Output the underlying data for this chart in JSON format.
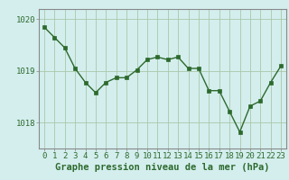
{
  "x": [
    0,
    1,
    2,
    3,
    4,
    5,
    6,
    7,
    8,
    9,
    10,
    11,
    12,
    13,
    14,
    15,
    16,
    17,
    18,
    19,
    20,
    21,
    22,
    23
  ],
  "y": [
    1019.85,
    1019.65,
    1019.45,
    1019.05,
    1018.78,
    1018.58,
    1018.78,
    1018.87,
    1018.87,
    1019.02,
    1019.22,
    1019.27,
    1019.22,
    1019.27,
    1019.05,
    1019.05,
    1018.62,
    1018.62,
    1018.22,
    1017.82,
    1018.32,
    1018.42,
    1018.78,
    1019.1
  ],
  "line_color": "#2d6a2d",
  "marker_color": "#2d6a2d",
  "bg_color": "#d4eeee",
  "plot_bg_color": "#d4eeee",
  "grid_color": "#a8c8a8",
  "axis_color": "#888888",
  "xlabel": "Graphe pression niveau de la mer (hPa)",
  "xlabel_color": "#2d6a2d",
  "tick_label_color": "#2d6a2d",
  "ylim": [
    1017.5,
    1020.2
  ],
  "yticks": [
    1018,
    1019,
    1020
  ],
  "xticks": [
    0,
    1,
    2,
    3,
    4,
    5,
    6,
    7,
    8,
    9,
    10,
    11,
    12,
    13,
    14,
    15,
    16,
    17,
    18,
    19,
    20,
    21,
    22,
    23
  ],
  "marker_size": 2.5,
  "line_width": 1.0,
  "font_size_ticks": 6.5,
  "font_size_xlabel": 7.5
}
